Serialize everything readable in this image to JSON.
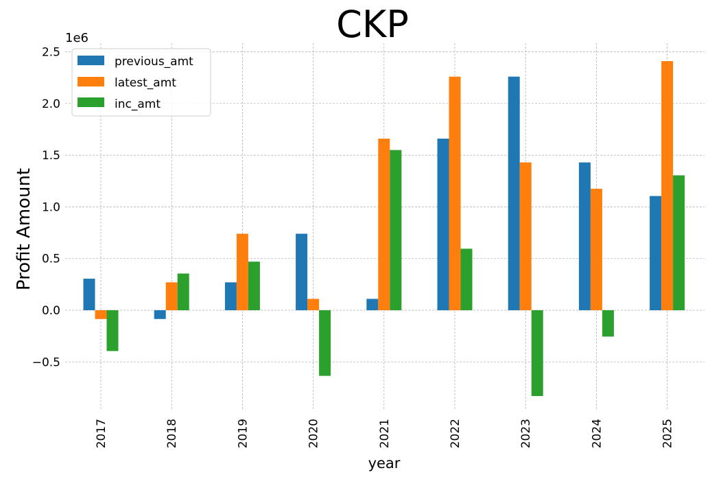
{
  "chart_data": {
    "type": "bar",
    "title": "CKP",
    "xlabel": "year",
    "ylabel": "Profit Amount",
    "y_scale_label": "1e6",
    "categories": [
      "2017",
      "2018",
      "2019",
      "2020",
      "2021",
      "2022",
      "2023",
      "2024",
      "2025"
    ],
    "series": [
      {
        "name": "previous_amt",
        "color": "#1f77b4",
        "values": [
          305000,
          -85000,
          270000,
          740000,
          110000,
          1660000,
          2260000,
          1430000,
          1105000
        ]
      },
      {
        "name": "latest_amt",
        "color": "#ff7f0e",
        "values": [
          -85000,
          270000,
          740000,
          110000,
          1660000,
          2260000,
          1430000,
          1175000,
          2410000
        ]
      },
      {
        "name": "inc_amt",
        "color": "#2ca02c",
        "values": [
          -395000,
          355000,
          470000,
          -635000,
          1550000,
          595000,
          -830000,
          -255000,
          1305000
        ]
      }
    ],
    "yticks": [
      -0.5,
      0.0,
      0.5,
      1.0,
      1.5,
      2.0,
      2.5
    ],
    "ytick_labels": [
      "−0.5",
      "0.0",
      "0.5",
      "1.0",
      "1.5",
      "2.0",
      "2.5"
    ],
    "ylim": [
      -0.97,
      2.58
    ],
    "grid": true,
    "legend_position": "top-left"
  }
}
